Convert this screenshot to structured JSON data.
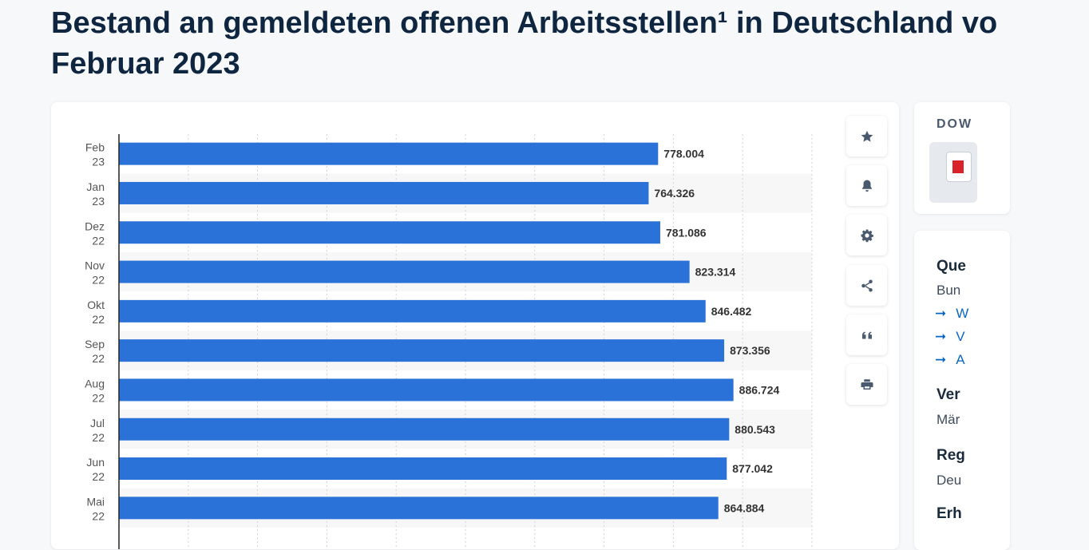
{
  "page": {
    "title_line1": "Bestand an gemeldeten offenen Arbeitsstellen¹ in Deutschland vo",
    "title_line2": "Februar 2023"
  },
  "toolbar": {
    "buttons": [
      {
        "icon": "star-icon"
      },
      {
        "icon": "bell-icon"
      },
      {
        "icon": "gear-icon"
      },
      {
        "icon": "share-icon"
      },
      {
        "icon": "quote-icon"
      },
      {
        "icon": "print-icon"
      }
    ]
  },
  "download": {
    "title": "DOW"
  },
  "info": {
    "source_heading": "Que",
    "source_text": "Bun",
    "links": [
      "W",
      "V",
      "A"
    ],
    "link_arrow": "➞",
    "published_heading": "Ver",
    "published_text": "Mär",
    "region_heading": "Reg",
    "region_text": "Deu",
    "survey_heading": "Erh"
  },
  "chart_data": {
    "type": "bar",
    "orientation": "horizontal",
    "categories": [
      "Feb 23",
      "Jan 23",
      "Dez 22",
      "Nov 22",
      "Okt 22",
      "Sep 22",
      "Aug 22",
      "Jul 22",
      "Jun 22",
      "Mai 22"
    ],
    "values": [
      778004,
      764326,
      781086,
      823314,
      846482,
      873356,
      886724,
      880543,
      877042,
      864884
    ],
    "value_labels": [
      "778.004",
      "764.326",
      "781.086",
      "823.314",
      "846.482",
      "873.356",
      "886.724",
      "880.543",
      "877.042",
      "864.884"
    ],
    "xlim": [
      0,
      1000000
    ],
    "grid": true,
    "bar_color": "#2a71d8",
    "stripe_color": "#f7f7f7"
  }
}
